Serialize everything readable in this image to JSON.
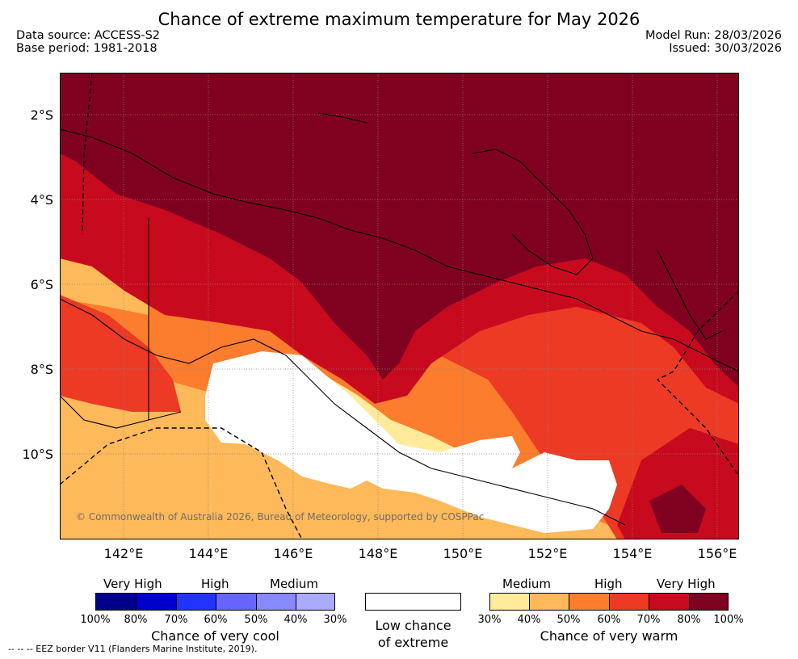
{
  "title": "Chance of extreme maximum temperature for May 2026",
  "meta": {
    "data_source": "Data source: ACCESS-S2",
    "base_period": "Base period: 1981-2018",
    "model_run": "Model Run: 28/03/2026",
    "issued": "Issued: 30/03/2026"
  },
  "map": {
    "lat_labels": [
      "2°S",
      "4°S",
      "6°S",
      "8°S",
      "10°S"
    ],
    "lon_labels": [
      "142°E",
      "144°E",
      "146°E",
      "148°E",
      "150°E",
      "152°E",
      "154°E",
      "156°E"
    ],
    "copyright": "© Commonwealth of Australia 2026, Bureau of Meteorology, supported by COSPPac"
  },
  "legend": {
    "cool": {
      "categories": [
        "Very High",
        "High",
        "Medium"
      ],
      "ticks": [
        "100%",
        "80%",
        "70%",
        "60%",
        "50%",
        "40%",
        "30%"
      ],
      "colors": [
        "#00008b",
        "#0000cd",
        "#2233ff",
        "#6666ff",
        "#8888ff",
        "#aaaaff"
      ],
      "caption": "Chance of very cool"
    },
    "neutral": {
      "caption_line1": "Low chance",
      "caption_line2": "of extreme"
    },
    "warm": {
      "categories": [
        "Medium",
        "High",
        "Very High"
      ],
      "ticks": [
        "30%",
        "40%",
        "50%",
        "60%",
        "70%",
        "80%",
        "100%"
      ],
      "colors": [
        "#ffeb99",
        "#fdb95a",
        "#fb7d2d",
        "#ec3a25",
        "#c80a1e",
        "#800020"
      ],
      "caption": "Chance of very warm"
    }
  },
  "footer": "--  --  -- EEZ border V11 (Flanders Marine Institute, 2019)."
}
